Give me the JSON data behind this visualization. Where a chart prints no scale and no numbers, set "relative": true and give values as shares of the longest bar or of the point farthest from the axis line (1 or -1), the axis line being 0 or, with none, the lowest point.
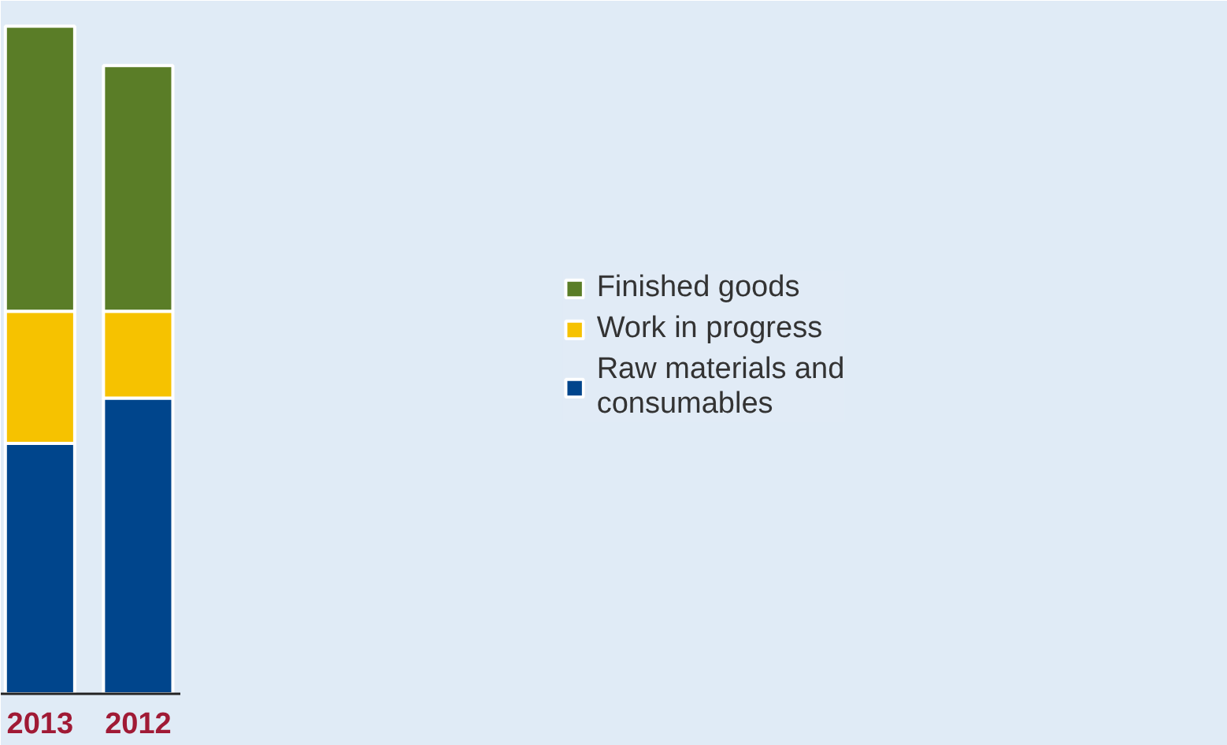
{
  "chart_data": {
    "type": "bar",
    "stacked": true,
    "relative": true,
    "categories": [
      "2013",
      "2012"
    ],
    "series": [
      {
        "name": "Raw materials and consumables",
        "color": "#00458c",
        "values": [
          0.375,
          0.443
        ]
      },
      {
        "name": "Work in progress",
        "color": "#f6c200",
        "values": [
          0.198,
          0.13
        ]
      },
      {
        "name": "Finished goods",
        "color": "#5a7d27",
        "values": [
          0.427,
          0.368
        ]
      }
    ],
    "legend": "right"
  }
}
